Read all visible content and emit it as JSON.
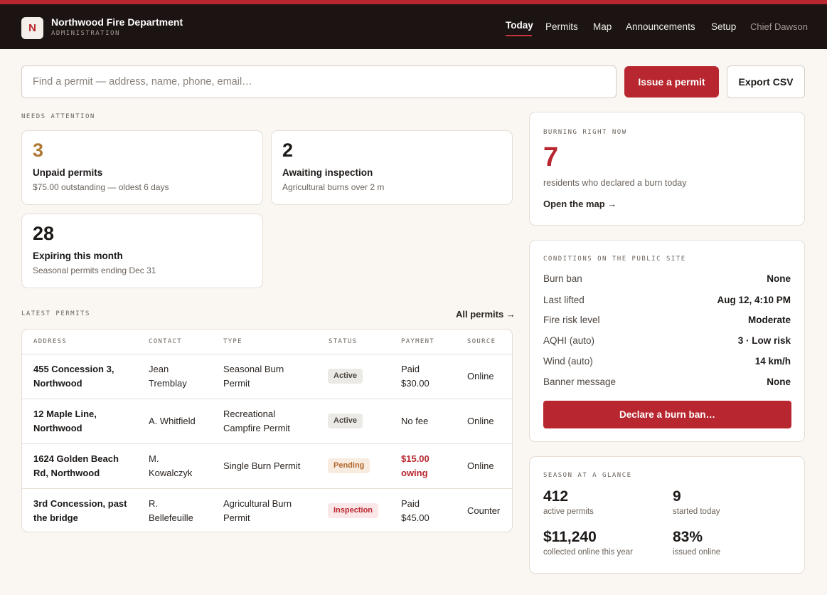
{
  "colors": {
    "accent": "#b8262f",
    "header_bg": "#1b1412",
    "warning": "#b0672b"
  },
  "header": {
    "logo_letter": "N",
    "title": "Northwood Fire Department",
    "subtitle": "ADMINISTRATION",
    "nav": [
      "Today",
      "Permits",
      "Map",
      "Announcements",
      "Setup"
    ],
    "active_nav": "Today",
    "user": "Chief Dawson"
  },
  "search": {
    "placeholder": "Find a permit — address, name, phone, email…",
    "value": ""
  },
  "actions": {
    "issue_label": "Issue a permit",
    "export_label": "Export CSV"
  },
  "attention": {
    "label": "NEEDS ATTENTION",
    "cards": [
      {
        "number": "3",
        "title": "Unpaid permits",
        "subtitle": "$75.00 outstanding — oldest 6 days",
        "color": "#b07a36"
      },
      {
        "number": "2",
        "title": "Awaiting inspection",
        "subtitle": "Agricultural burns over 2 m",
        "color": "#1c1917"
      },
      {
        "number": "28",
        "title": "Expiring this month",
        "subtitle": "Seasonal permits ending Dec 31",
        "color": "#1c1917"
      }
    ]
  },
  "latest": {
    "label": "LATEST PERMITS",
    "all_link": "All permits →",
    "columns": [
      "ADDRESS",
      "CONTACT",
      "TYPE",
      "STATUS",
      "PAYMENT",
      "SOURCE"
    ],
    "rows": [
      {
        "address": [
          "455 Concession 3,",
          "Northwood"
        ],
        "contact": [
          "Jean",
          "Tremblay"
        ],
        "type": [
          "Seasonal Burn",
          "Permit"
        ],
        "status": "Active",
        "payment": [
          "Paid",
          "$30.00"
        ],
        "owing": false,
        "source": "Online"
      },
      {
        "address": [
          "12 Maple Line,",
          "Northwood"
        ],
        "contact": [
          "A. Whitfield"
        ],
        "type": [
          "Recreational",
          "Campfire Permit"
        ],
        "status": "Active",
        "payment": [
          "No fee"
        ],
        "owing": false,
        "source": "Online"
      },
      {
        "address": [
          "1624 Golden Beach",
          "Rd, Northwood"
        ],
        "contact": [
          "M.",
          "Kowalczyk"
        ],
        "type": [
          "Single Burn Permit"
        ],
        "status": "Pending",
        "payment": [
          "$15.00",
          "owing"
        ],
        "owing": true,
        "source": "Online"
      },
      {
        "address": [
          "3rd Concession, past",
          "the bridge"
        ],
        "contact": [
          "R.",
          "Bellefeuille"
        ],
        "type": [
          "Agricultural Burn",
          "Permit"
        ],
        "status": "Inspection",
        "payment": [
          "Paid",
          "$45.00"
        ],
        "owing": false,
        "source": "Counter"
      }
    ]
  },
  "burning": {
    "label": "BURNING RIGHT NOW",
    "count": "7",
    "caption": "residents who declared a burn today",
    "link": "Open the map →"
  },
  "conditions": {
    "label": "CONDITIONS ON THE PUBLIC SITE",
    "rows": [
      {
        "key": "Burn ban",
        "value": "None"
      },
      {
        "key": "Last lifted",
        "value": "Aug 12, 4:10 PM"
      },
      {
        "key": "Fire risk level",
        "value": "Moderate"
      },
      {
        "key": "AQHI (auto)",
        "value": "3 · Low risk"
      },
      {
        "key": "Wind (auto)",
        "value": "14 km/h"
      },
      {
        "key": "Banner message",
        "value": "None"
      }
    ],
    "button": "Declare a burn ban…"
  },
  "season": {
    "label": "SEASON AT A GLANCE",
    "stats": [
      {
        "value": "412",
        "label": "active permits"
      },
      {
        "value": "9",
        "label": "started today"
      },
      {
        "value": "$11,240",
        "label": "collected online this year"
      },
      {
        "value": "83%",
        "label": "issued online"
      }
    ]
  }
}
